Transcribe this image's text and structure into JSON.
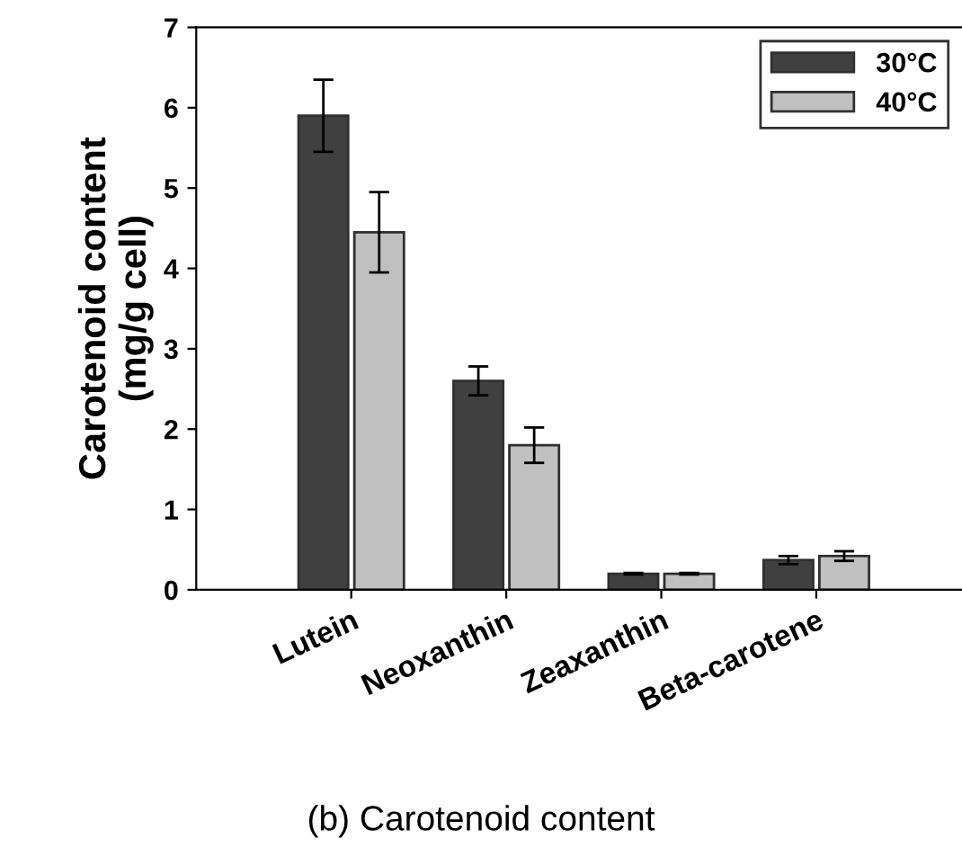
{
  "chart_data": {
    "type": "bar",
    "ylabel": "Carotenoid content\n(mg/g cell)",
    "categories": [
      "Lutein",
      "Neoxanthin",
      "Zeaxanthin",
      "Beta-carotene"
    ],
    "series": [
      {
        "name": "30°C",
        "color": "#404040",
        "values": [
          5.9,
          2.6,
          0.2,
          0.37
        ],
        "errors": [
          0.45,
          0.18,
          0.01,
          0.05
        ]
      },
      {
        "name": "40°C",
        "color": "#c0c0c0",
        "values": [
          4.45,
          1.8,
          0.2,
          0.42
        ],
        "errors": [
          0.5,
          0.22,
          0.01,
          0.06
        ]
      }
    ],
    "ylim": [
      0,
      7
    ],
    "yticks": [
      0,
      1,
      2,
      3,
      4,
      5,
      6,
      7
    ],
    "legend": "top right",
    "grid": false,
    "annotations": [
      "(b) Carotenoid content"
    ]
  }
}
